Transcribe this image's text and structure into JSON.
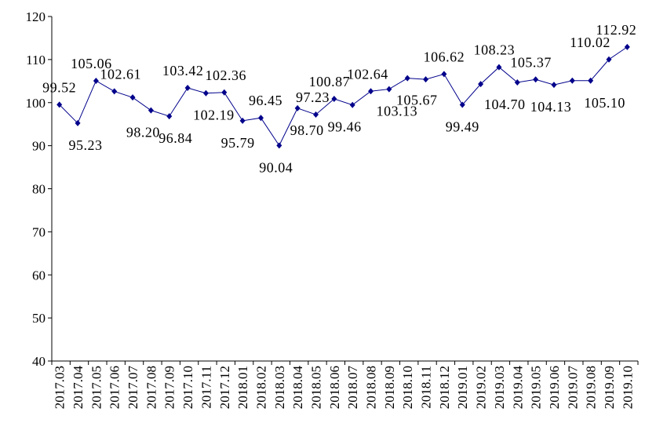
{
  "chart_data": {
    "type": "line",
    "title": "",
    "xlabel": "",
    "ylabel": "",
    "ylim": [
      40,
      120
    ],
    "yticks": [
      "40",
      "50",
      "60",
      "70",
      "80",
      "90",
      "100",
      "110",
      "120"
    ],
    "grid": false,
    "legend": "none",
    "series_color": "#00008B",
    "categories": [
      "2017.03",
      "2017.04",
      "2017.05",
      "2017.06",
      "2017.07",
      "2017.08",
      "2017.09",
      "2017.10",
      "2017.11",
      "2017.12",
      "2018.01",
      "2018.02",
      "2018.03",
      "2018.04",
      "2018.05",
      "2018.06",
      "2018.07",
      "2018.08",
      "2018.09",
      "2018.10",
      "2018.11",
      "2018.12",
      "2019.01",
      "2019.02",
      "2019.03",
      "2019.04",
      "2019.05",
      "2019.06",
      "2019.07",
      "2019.08",
      "2019.09",
      "2019.10"
    ],
    "values": [
      99.52,
      95.23,
      105.06,
      102.61,
      101.2,
      98.2,
      96.84,
      103.42,
      102.19,
      102.36,
      95.79,
      96.45,
      90.04,
      98.7,
      97.23,
      100.87,
      99.46,
      102.64,
      103.13,
      105.67,
      105.4,
      106.62,
      99.49,
      104.3,
      108.23,
      104.7,
      105.37,
      104.13,
      105.1,
      105.1,
      110.02,
      112.92
    ],
    "data_labels": [
      "99.52",
      "95.23",
      "105.06",
      "102.61",
      null,
      "98.20",
      "96.84",
      "103.42",
      "102.19",
      "102.36",
      "95.79",
      "96.45",
      "90.04",
      "98.70",
      "97.23",
      "100.87",
      "99.46",
      "102.64",
      "103.13",
      "105.67",
      null,
      "106.62",
      "99.49",
      null,
      "108.23",
      "104.70",
      "105.37",
      "104.13",
      null,
      "105.10",
      "110.02",
      "112.92"
    ]
  }
}
